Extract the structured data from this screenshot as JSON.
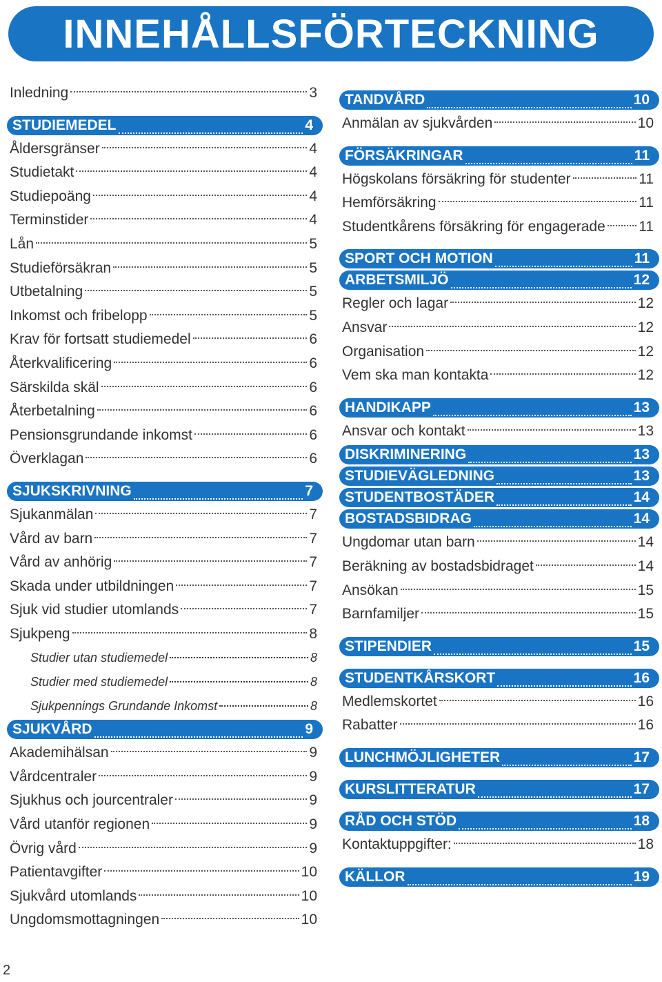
{
  "title": "INNEHÅLLSFÖRTECKNING",
  "page_number": "2",
  "left_column": [
    {
      "type": "item",
      "label": "Inledning",
      "page": "3"
    },
    {
      "type": "gap"
    },
    {
      "type": "head",
      "label": "STUDIEMEDEL",
      "page": "4"
    },
    {
      "type": "item",
      "label": "Åldersgränser",
      "page": "4"
    },
    {
      "type": "item",
      "label": "Studietakt",
      "page": "4"
    },
    {
      "type": "item",
      "label": "Studiepoäng",
      "page": "4"
    },
    {
      "type": "item",
      "label": "Terminstider",
      "page": "4"
    },
    {
      "type": "item",
      "label": "Lån",
      "page": "5"
    },
    {
      "type": "item",
      "label": "Studieförsäkran",
      "page": "5"
    },
    {
      "type": "item",
      "label": "Utbetalning",
      "page": "5"
    },
    {
      "type": "item",
      "label": "Inkomst och fribelopp",
      "page": "5"
    },
    {
      "type": "item",
      "label": "Krav för fortsatt studiemedel",
      "page": "6"
    },
    {
      "type": "item",
      "label": "Återkvalificering",
      "page": "6"
    },
    {
      "type": "item",
      "label": "Särskilda skäl",
      "page": "6"
    },
    {
      "type": "item",
      "label": "Återbetalning",
      "page": "6"
    },
    {
      "type": "item",
      "label": "Pensionsgrundande inkomst",
      "page": "6"
    },
    {
      "type": "item",
      "label": "Överklagan",
      "page": "6"
    },
    {
      "type": "gap"
    },
    {
      "type": "head",
      "label": "SJUKSKRIVNING",
      "page": "7"
    },
    {
      "type": "item",
      "label": "Sjukanmälan",
      "page": "7"
    },
    {
      "type": "item",
      "label": "Vård av barn",
      "page": "7"
    },
    {
      "type": "item",
      "label": "Vård av anhörig",
      "page": "7"
    },
    {
      "type": "item",
      "label": "Skada under utbildningen",
      "page": "7"
    },
    {
      "type": "item",
      "label": "Sjuk vid studier utomlands",
      "page": "7"
    },
    {
      "type": "item",
      "label": "Sjukpeng",
      "page": "8"
    },
    {
      "type": "sub",
      "label": "Studier utan studiemedel",
      "page": "8"
    },
    {
      "type": "sub",
      "label": "Studier med studiemedel",
      "page": "8"
    },
    {
      "type": "sub",
      "label": "Sjukpennings Grundande Inkomst",
      "page": "8"
    },
    {
      "type": "head",
      "label": "SJUKVÅRD",
      "page": "9"
    },
    {
      "type": "item",
      "label": "Akademihälsan",
      "page": "9"
    },
    {
      "type": "item",
      "label": "Vårdcentraler",
      "page": "9"
    },
    {
      "type": "item",
      "label": "Sjukhus och jourcentraler",
      "page": "9"
    },
    {
      "type": "item",
      "label": "Vård utanför regionen",
      "page": "9"
    },
    {
      "type": "item",
      "label": "Övrig vård",
      "page": "9"
    },
    {
      "type": "item",
      "label": "Patientavgifter",
      "page": "10"
    },
    {
      "type": "item",
      "label": "Sjukvård utomlands",
      "page": "10"
    },
    {
      "type": "item",
      "label": "Ungdomsmottagningen",
      "page": "10"
    }
  ],
  "right_column": [
    {
      "type": "head",
      "label": "TANDVÅRD",
      "page": "10"
    },
    {
      "type": "item",
      "label": "Anmälan av sjukvården",
      "page": "10"
    },
    {
      "type": "gap"
    },
    {
      "type": "head",
      "label": "FÖRSÄKRINGAR",
      "page": "11"
    },
    {
      "type": "item",
      "label": "Högskolans försäkring för studenter",
      "page": "11"
    },
    {
      "type": "item",
      "label": "Hemförsäkring",
      "page": "11"
    },
    {
      "type": "item",
      "label": "Studentkårens försäkring för engagerade",
      "page": "11"
    },
    {
      "type": "gap"
    },
    {
      "type": "head",
      "label": "SPORT OCH MOTION",
      "page": "11"
    },
    {
      "type": "head",
      "label": "ARBETSMILJÖ",
      "page": "12"
    },
    {
      "type": "item",
      "label": "Regler och lagar",
      "page": "12"
    },
    {
      "type": "item",
      "label": "Ansvar",
      "page": "12"
    },
    {
      "type": "item",
      "label": "Organisation",
      "page": "12"
    },
    {
      "type": "item",
      "label": "Vem ska man kontakta",
      "page": "12"
    },
    {
      "type": "gap"
    },
    {
      "type": "head",
      "label": "HANDIKAPP",
      "page": "13"
    },
    {
      "type": "item",
      "label": "Ansvar och kontakt",
      "page": "13"
    },
    {
      "type": "head",
      "label": "DISKRIMINERING",
      "page": "13"
    },
    {
      "type": "head",
      "label": "STUDIEVÄGLEDNING",
      "page": "13"
    },
    {
      "type": "head",
      "label": "STUDENTBOSTÄDER",
      "page": "14"
    },
    {
      "type": "head",
      "label": "BOSTADSBIDRAG",
      "page": "14"
    },
    {
      "type": "item",
      "label": "Ungdomar utan barn",
      "page": "14"
    },
    {
      "type": "item",
      "label": "Beräkning av bostadsbidraget",
      "page": "14"
    },
    {
      "type": "item",
      "label": "Ansökan",
      "page": "15"
    },
    {
      "type": "item",
      "label": "Barnfamiljer",
      "page": "15"
    },
    {
      "type": "gap"
    },
    {
      "type": "head",
      "label": "STIPENDIER",
      "page": "15"
    },
    {
      "type": "gap"
    },
    {
      "type": "head",
      "label": "STUDENTKÅRSKORT",
      "page": "16"
    },
    {
      "type": "item",
      "label": "Medlemskortet",
      "page": "16"
    },
    {
      "type": "item",
      "label": "Rabatter",
      "page": "16"
    },
    {
      "type": "gap"
    },
    {
      "type": "head",
      "label": "LUNCHMÖJLIGHETER",
      "page": "17"
    },
    {
      "type": "gap"
    },
    {
      "type": "head",
      "label": "KURSLITTERATUR",
      "page": "17"
    },
    {
      "type": "gap"
    },
    {
      "type": "head",
      "label": "RÅD OCH STÖD",
      "page": "18"
    },
    {
      "type": "item",
      "label": "Kontaktuppgifter:",
      "page": "18"
    },
    {
      "type": "gap"
    },
    {
      "type": "head",
      "label": "KÄLLOR",
      "page": "19"
    }
  ]
}
